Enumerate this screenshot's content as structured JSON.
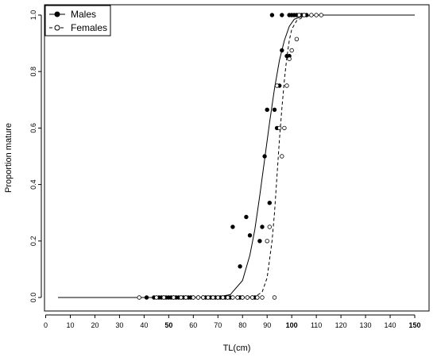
{
  "chart_data": {
    "type": "scatter",
    "xlabel": "TL(cm)",
    "ylabel": "Proportion mature",
    "xlim": [
      0,
      150
    ],
    "ylim": [
      0,
      1
    ],
    "xticks": [
      0,
      10,
      20,
      30,
      40,
      50,
      60,
      70,
      80,
      90,
      100,
      110,
      120,
      130,
      140,
      150
    ],
    "yticks": [
      0.0,
      0.2,
      0.4,
      0.6,
      0.8,
      1.0
    ],
    "ytick_labels": [
      "0.0",
      "0.2",
      "0.4",
      "0.6",
      "0.8",
      "1.0"
    ],
    "grid": false,
    "legend_position": "top-left",
    "series": [
      {
        "name": "Males",
        "marker": "filled-circle",
        "line_style": "solid",
        "color": "#000000",
        "points": [
          [
            41,
            0
          ],
          [
            44,
            0
          ],
          [
            46,
            0
          ],
          [
            47,
            0
          ],
          [
            48,
            0
          ],
          [
            49,
            0
          ],
          [
            50,
            0
          ],
          [
            51,
            0
          ],
          [
            52,
            0
          ],
          [
            53,
            0
          ],
          [
            54,
            0
          ],
          [
            55,
            0
          ],
          [
            56,
            0
          ],
          [
            57,
            0
          ],
          [
            58,
            0
          ],
          [
            59,
            0
          ],
          [
            60,
            0
          ],
          [
            62,
            0
          ],
          [
            64,
            0
          ],
          [
            65,
            0
          ],
          [
            66,
            0
          ],
          [
            67,
            0
          ],
          [
            68,
            0
          ],
          [
            69,
            0
          ],
          [
            70,
            0
          ],
          [
            71,
            0
          ],
          [
            72,
            0
          ],
          [
            73,
            0
          ],
          [
            74,
            0
          ],
          [
            75,
            0
          ],
          [
            78,
            0
          ],
          [
            79,
            0
          ],
          [
            80,
            0
          ],
          [
            82,
            0
          ],
          [
            84,
            0
          ],
          [
            85,
            0
          ],
          [
            86,
            0
          ],
          [
            76,
            0.25
          ],
          [
            79,
            0.11
          ],
          [
            81.5,
            0.285
          ],
          [
            83,
            0.22
          ],
          [
            87,
            0.2
          ],
          [
            88,
            0.25
          ],
          [
            89,
            0.5
          ],
          [
            90,
            0.665
          ],
          [
            91,
            0.335
          ],
          [
            93,
            0.665
          ],
          [
            94,
            0.6
          ],
          [
            95,
            0.75
          ],
          [
            96,
            0.875
          ],
          [
            98,
            0.855
          ],
          [
            99,
            0.855
          ],
          [
            92,
            1.0
          ],
          [
            96,
            1.0
          ],
          [
            99,
            1.0
          ],
          [
            100,
            1.0
          ],
          [
            101,
            1.0
          ],
          [
            102,
            1.0
          ],
          [
            104,
            1.0
          ],
          [
            106,
            1.0
          ]
        ],
        "curve": [
          [
            5,
            0
          ],
          [
            60,
            0
          ],
          [
            70,
            0.002
          ],
          [
            75,
            0.01
          ],
          [
            80,
            0.06
          ],
          [
            83,
            0.15
          ],
          [
            85,
            0.24
          ],
          [
            87,
            0.36
          ],
          [
            89,
            0.49
          ],
          [
            91,
            0.62
          ],
          [
            93,
            0.74
          ],
          [
            95,
            0.84
          ],
          [
            97,
            0.91
          ],
          [
            99,
            0.96
          ],
          [
            101,
            0.985
          ],
          [
            104,
            0.995
          ],
          [
            110,
            1.0
          ],
          [
            150,
            1.0
          ]
        ]
      },
      {
        "name": "Females",
        "marker": "open-circle",
        "line_style": "dashed",
        "color": "#000000",
        "points": [
          [
            38,
            0
          ],
          [
            45,
            0
          ],
          [
            48,
            0
          ],
          [
            52,
            0
          ],
          [
            55,
            0
          ],
          [
            57,
            0
          ],
          [
            60,
            0
          ],
          [
            62,
            0
          ],
          [
            64,
            0
          ],
          [
            66,
            0
          ],
          [
            68,
            0
          ],
          [
            70,
            0
          ],
          [
            72,
            0
          ],
          [
            74,
            0
          ],
          [
            76,
            0
          ],
          [
            78,
            0
          ],
          [
            80,
            0
          ],
          [
            82,
            0
          ],
          [
            84,
            0
          ],
          [
            86,
            0
          ],
          [
            88,
            0
          ],
          [
            93,
            0
          ],
          [
            90,
            0.2
          ],
          [
            91,
            0.25
          ],
          [
            94,
            0.75
          ],
          [
            95,
            0.6
          ],
          [
            96,
            0.5
          ],
          [
            97,
            0.6
          ],
          [
            98,
            0.75
          ],
          [
            99,
            0.845
          ],
          [
            100,
            0.875
          ],
          [
            102,
            0.915
          ],
          [
            103,
            1.0
          ],
          [
            105,
            1.0
          ],
          [
            108,
            1.0
          ],
          [
            110,
            1.0
          ],
          [
            112,
            1.0
          ]
        ],
        "curve": [
          [
            5,
            0
          ],
          [
            80,
            0
          ],
          [
            85,
            0.002
          ],
          [
            88,
            0.02
          ],
          [
            90,
            0.07
          ],
          [
            92,
            0.2
          ],
          [
            93,
            0.3
          ],
          [
            94,
            0.43
          ],
          [
            95,
            0.56
          ],
          [
            96,
            0.67
          ],
          [
            97,
            0.77
          ],
          [
            98,
            0.85
          ],
          [
            99,
            0.91
          ],
          [
            100,
            0.95
          ],
          [
            102,
            0.98
          ],
          [
            105,
            0.995
          ],
          [
            110,
            1.0
          ],
          [
            150,
            1.0
          ]
        ]
      }
    ]
  }
}
